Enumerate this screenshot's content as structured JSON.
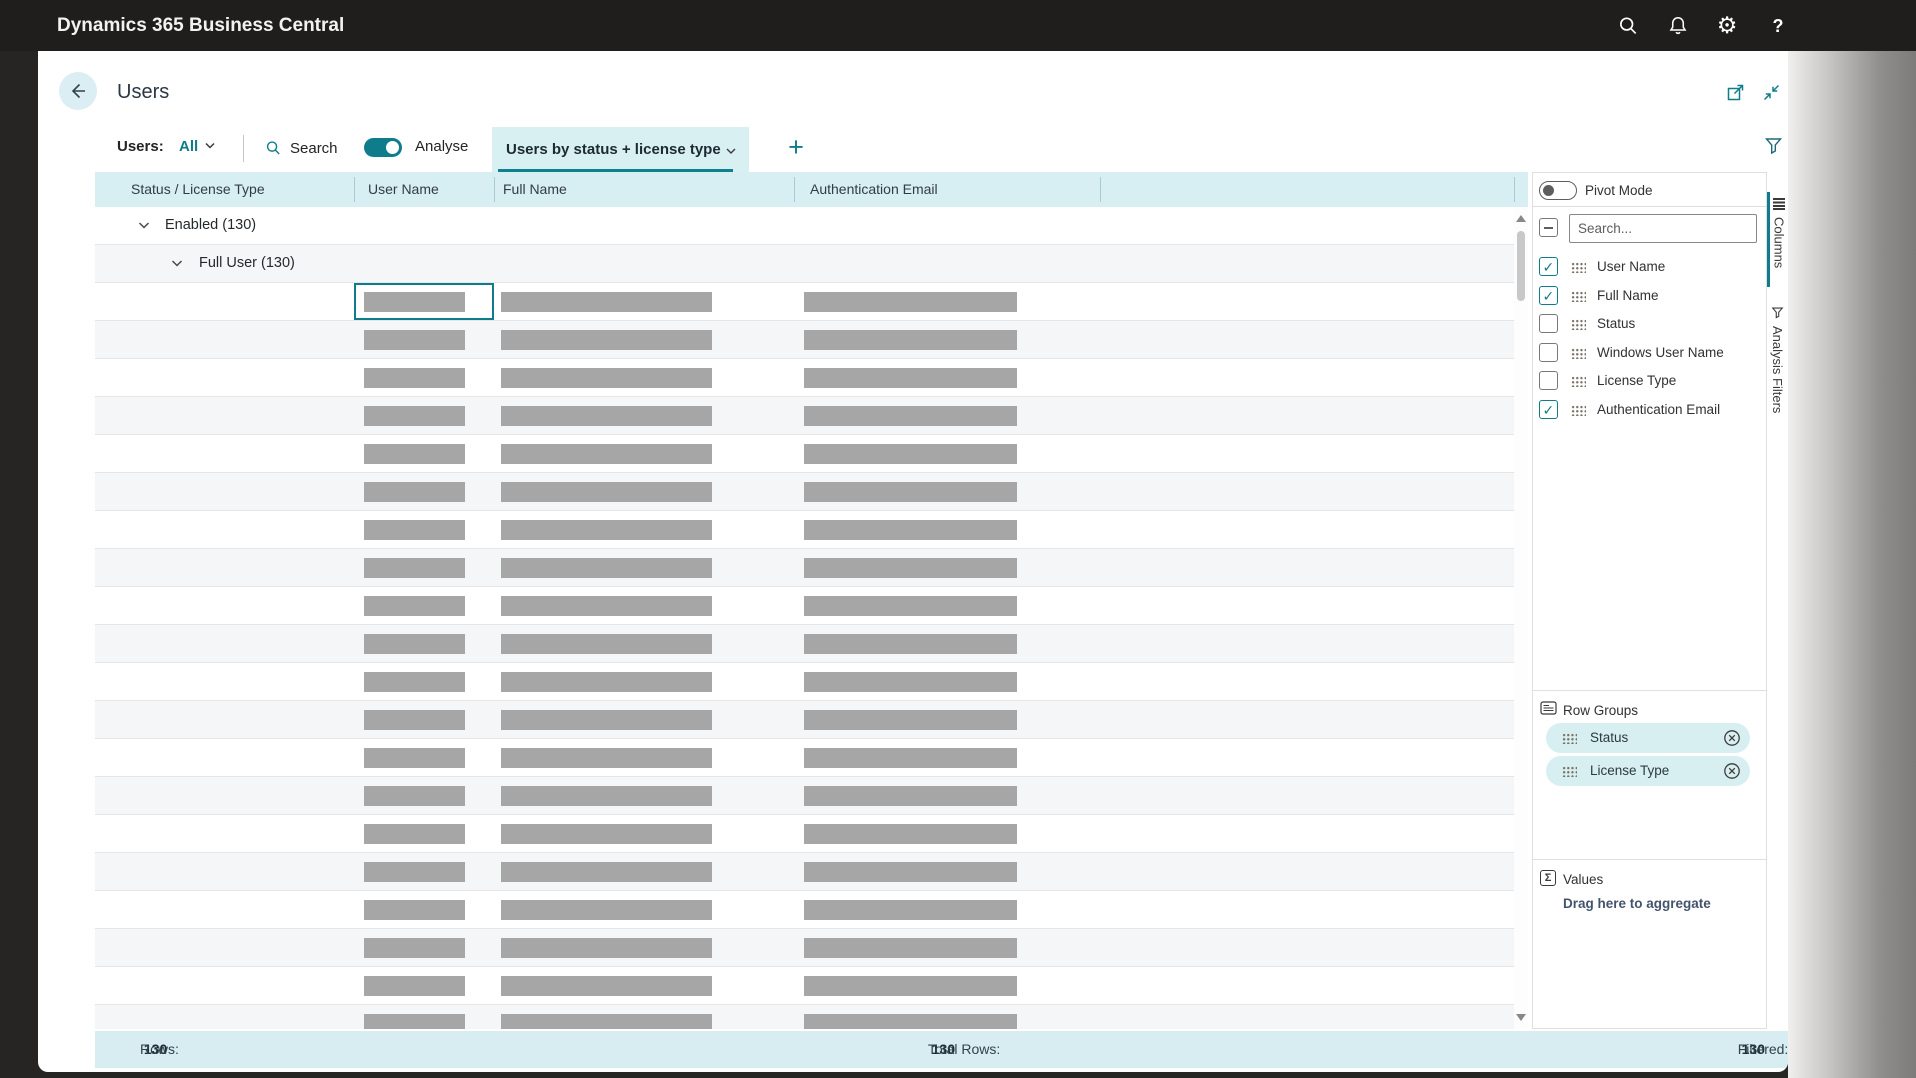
{
  "topbar": {
    "title": "Dynamics 365 Business Central",
    "icons": [
      "search-icon",
      "notifications-bell-icon",
      "settings-gear-icon",
      "help-icon"
    ]
  },
  "page": {
    "title": "Users"
  },
  "filterbar": {
    "scope_label": "Users:",
    "scope_value": "All",
    "search_label": "Search",
    "analyse_label": "Analyse",
    "analyse_on": true,
    "tab_label": "Users by status + license type",
    "add_tab_label": "+"
  },
  "grid": {
    "columns": [
      "Status / License Type",
      "User Name",
      "Full Name",
      "Authentication Email"
    ],
    "groups": [
      {
        "label": "Enabled (130)",
        "level": 1,
        "expanded": true
      },
      {
        "label": "Full User (130)",
        "level": 2,
        "expanded": true
      }
    ],
    "data_row_count": 20,
    "selected": {
      "row": 0,
      "column": "User Name"
    }
  },
  "panel": {
    "pivot_mode_label": "Pivot Mode",
    "pivot_on": false,
    "search_placeholder": "Search...",
    "fields": [
      {
        "label": "User Name",
        "checked": true
      },
      {
        "label": "Full Name",
        "checked": true
      },
      {
        "label": "Status",
        "checked": false
      },
      {
        "label": "Windows User Name",
        "checked": false
      },
      {
        "label": "License Type",
        "checked": false
      },
      {
        "label": "Authentication Email",
        "checked": true
      }
    ],
    "row_groups": {
      "title": "Row Groups",
      "chips": [
        "Status",
        "License Type"
      ]
    },
    "values": {
      "title": "Values",
      "hint": "Drag here to aggregate"
    }
  },
  "side_tabs": [
    {
      "label": "Columns",
      "active": true
    },
    {
      "label": "Analysis Filters",
      "active": false
    }
  ],
  "statusbar": {
    "rows_label": "Rows:",
    "rows_value": "130",
    "total_label": "Total Rows:",
    "total_value": "130",
    "filtered_label": "Filtered:",
    "filtered_value": "130"
  },
  "colors": {
    "accent_teal": "#0e7c8a",
    "light_cyan": "#d7eef3",
    "topbar_dark": "#1f1e1d",
    "placeholder_bar": "#a6a6a6",
    "row_alt": "#f5f6f8"
  }
}
